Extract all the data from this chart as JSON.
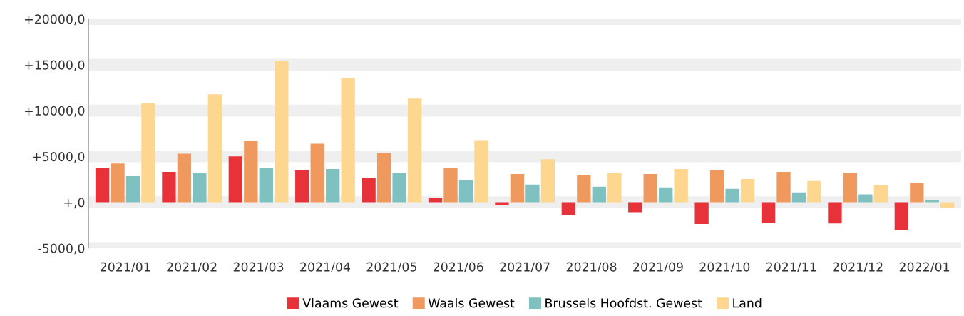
{
  "chart_data": {
    "type": "bar",
    "categories": [
      "2021/01",
      "2021/02",
      "2021/03",
      "2021/04",
      "2021/05",
      "2021/06",
      "2021/07",
      "2021/08",
      "2021/09",
      "2021/10",
      "2021/11",
      "2021/12",
      "2022/01"
    ],
    "series": [
      {
        "name": "Vlaams Gewest",
        "color": "#e8323a",
        "values": [
          3770,
          3300,
          5000,
          3460,
          2600,
          460,
          -300,
          -1380,
          -1080,
          -2380,
          -2230,
          -2310,
          -3080
        ]
      },
      {
        "name": "Waals Gewest",
        "color": "#f0995e",
        "values": [
          4230,
          5300,
          6700,
          6380,
          5380,
          3770,
          3080,
          2920,
          3080,
          3460,
          3300,
          3230,
          2150
        ]
      },
      {
        "name": "Brussels Hoofdst. Gewest",
        "color": "#7fc1c0",
        "values": [
          2850,
          3150,
          3700,
          3620,
          3150,
          2460,
          1920,
          1690,
          1620,
          1460,
          1080,
          850,
          230
        ]
      },
      {
        "name": "Land",
        "color": "#fdd68f",
        "values": [
          10850,
          11770,
          15460,
          13540,
          11300,
          6770,
          4690,
          3150,
          3620,
          2540,
          2310,
          1850,
          -620
        ]
      }
    ],
    "ylim": [
      -5000,
      20000
    ],
    "yticks": [
      {
        "value": -5000,
        "label": "-5000,0"
      },
      {
        "value": 0,
        "label": "+,0"
      },
      {
        "value": 5000,
        "label": "+5000,0"
      },
      {
        "value": 10000,
        "label": "+10000,0"
      },
      {
        "value": 15000,
        "label": "+15000,0"
      },
      {
        "value": 20000,
        "label": "+20000,0"
      }
    ],
    "grid": "y",
    "legend": "bottom"
  }
}
